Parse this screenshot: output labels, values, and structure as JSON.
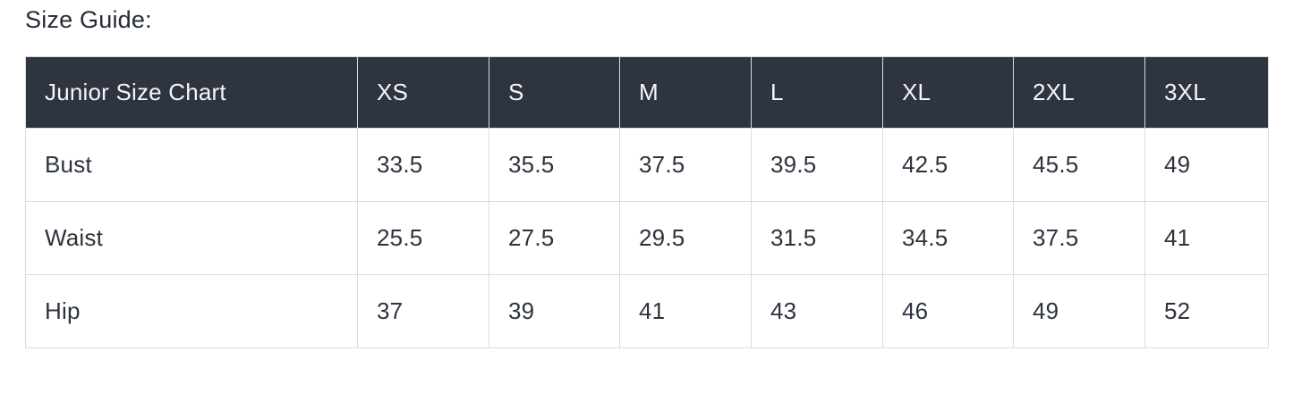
{
  "page": {
    "title": "Size Guide:"
  },
  "size_chart": {
    "name_header": "Junior Size Chart",
    "columns": [
      "XS",
      "S",
      "M",
      "L",
      "XL",
      "2XL",
      "3XL"
    ],
    "rows": [
      {
        "label": "Bust",
        "values": [
          "33.5",
          "35.5",
          "37.5",
          "39.5",
          "42.5",
          "45.5",
          "49"
        ]
      },
      {
        "label": "Waist",
        "values": [
          "25.5",
          "27.5",
          "29.5",
          "31.5",
          "34.5",
          "37.5",
          "41"
        ]
      },
      {
        "label": "Hip",
        "values": [
          "37",
          "39",
          "41",
          "43",
          "46",
          "49",
          "52"
        ]
      }
    ],
    "colors": {
      "header_background": "#2e3540",
      "header_text": "#f5f6f7",
      "body_text": "#2d333d",
      "border": "#d8dbde"
    }
  }
}
